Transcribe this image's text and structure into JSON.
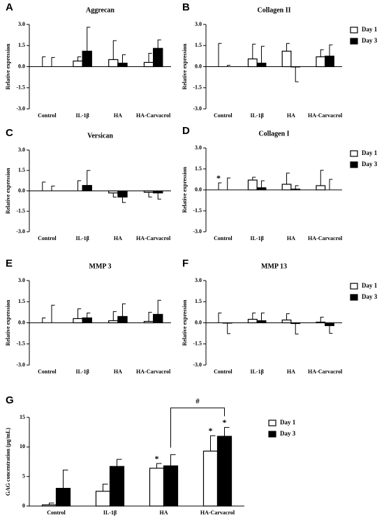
{
  "chart_data": [
    {
      "type": "bar",
      "panel": "A",
      "title": "Aggrecan",
      "ylabel": "Relative expression",
      "legend": false,
      "categories": [
        "Control",
        "IL-1β",
        "HA",
        "HA-Carvacrol"
      ],
      "series": [
        {
          "color": "#ffffff",
          "values": [
            0,
            0.4,
            0.5,
            0.3
          ],
          "errors": [
            0.7,
            0.3,
            1.35,
            0.65
          ]
        },
        {
          "color": "#000000",
          "values": [
            0,
            1.1,
            0.25,
            1.3
          ],
          "errors": [
            0.65,
            1.7,
            0.6,
            0.6
          ]
        }
      ],
      "ylim": [
        -3,
        3
      ],
      "yticks": [
        {
          "value": 3,
          "label": "3.0"
        },
        {
          "value": 1.5,
          "label": "1.5"
        },
        {
          "value": 0,
          "label": "0.0"
        },
        {
          "value": -1.5,
          "label": "-1.5"
        },
        {
          "value": -3,
          "label": "-3.0"
        }
      ]
    },
    {
      "type": "bar",
      "panel": "B",
      "title": "Collagen II",
      "ylabel": "Relative expression",
      "legend": true,
      "categories": [
        "Control",
        "IL-1β",
        "HA",
        "HA-Carvacrol"
      ],
      "series": [
        {
          "name": "Day 1",
          "color": "#ffffff",
          "values": [
            0,
            0.55,
            1.1,
            0.7
          ],
          "errors": [
            1.65,
            1.05,
            0.55,
            0.5
          ]
        },
        {
          "name": "Day 3",
          "color": "#000000",
          "values": [
            0,
            0.25,
            -0.02,
            0.75
          ],
          "errors": [
            0.1,
            1.2,
            1.05,
            0.8
          ]
        }
      ],
      "ylim": [
        -3,
        3
      ],
      "yticks": [
        {
          "value": 3,
          "label": "3.0"
        },
        {
          "value": 1.5,
          "label": "1.5"
        },
        {
          "value": 0,
          "label": "0.0"
        },
        {
          "value": -1.5,
          "label": "-1.5"
        },
        {
          "value": -3,
          "label": "-3.0"
        }
      ]
    },
    {
      "type": "bar",
      "panel": "C",
      "title": "Versican",
      "ylabel": "Relative expression",
      "legend": false,
      "categories": [
        "Control",
        "IL-1β",
        "HA",
        "HA-Carvacrol"
      ],
      "series": [
        {
          "color": "#ffffff",
          "values": [
            0,
            0,
            -0.15,
            -0.1
          ],
          "errors": [
            0.65,
            0.75,
            0.3,
            0.35
          ]
        },
        {
          "color": "#000000",
          "values": [
            0,
            0.4,
            -0.45,
            -0.15
          ],
          "errors": [
            0.35,
            1.1,
            0.4,
            0.45
          ]
        }
      ],
      "ylim": [
        -3,
        3
      ],
      "yticks": [
        {
          "value": 3,
          "label": "3.0"
        },
        {
          "value": 1.5,
          "label": "1.5"
        },
        {
          "value": 0,
          "label": "0.0"
        },
        {
          "value": -1.5,
          "label": "-1.5"
        },
        {
          "value": -3,
          "label": "-3.0"
        }
      ]
    },
    {
      "type": "bar",
      "panel": "D",
      "title": "Collagen I",
      "ylabel": "Relative expression",
      "legend": true,
      "categories": [
        "Control",
        "IL-1β",
        "HA",
        "HA-Carvacrol"
      ],
      "series": [
        {
          "name": "Day 1",
          "color": "#ffffff",
          "values": [
            0,
            0.7,
            0.4,
            0.3
          ],
          "errors": [
            0.5,
            0.2,
            0.8,
            1.1
          ],
          "marks": [
            "*",
            null,
            null,
            null
          ]
        },
        {
          "name": "Day 3",
          "color": "#000000",
          "values": [
            0,
            0.15,
            0.05,
            0
          ],
          "errors": [
            0.85,
            0.5,
            0.25,
            0.75
          ]
        }
      ],
      "ylim": [
        -3,
        3
      ],
      "yticks": [
        {
          "value": 3,
          "label": "3.0"
        },
        {
          "value": 1.5,
          "label": "1.5"
        },
        {
          "value": 0,
          "label": "0.0"
        },
        {
          "value": -1.5,
          "label": "-1.5"
        },
        {
          "value": -3,
          "label": "-3.0"
        }
      ]
    },
    {
      "type": "bar",
      "panel": "E",
      "title": "MMP 3",
      "ylabel": "Relative expression",
      "legend": false,
      "categories": [
        "Control",
        "IL-1β",
        "HA",
        "HA-Carvacrol"
      ],
      "series": [
        {
          "color": "#ffffff",
          "values": [
            0,
            0.3,
            0.15,
            0.1
          ],
          "errors": [
            0.35,
            0.7,
            0.65,
            0.65
          ]
        },
        {
          "color": "#000000",
          "values": [
            0,
            0.35,
            0.45,
            0.6
          ],
          "errors": [
            1.25,
            0.35,
            0.9,
            1.0
          ]
        }
      ],
      "ylim": [
        -3,
        3
      ],
      "yticks": [
        {
          "value": 3,
          "label": "3.0"
        },
        {
          "value": 1.5,
          "label": "1.5"
        },
        {
          "value": 0,
          "label": "0.0"
        },
        {
          "value": -1.5,
          "label": "-1.5"
        },
        {
          "value": -3,
          "label": "-3.0"
        }
      ]
    },
    {
      "type": "bar",
      "panel": "F",
      "title": "MMP 13",
      "ylabel": "Relative expression",
      "legend": true,
      "categories": [
        "Control",
        "IL-1β",
        "HA",
        "HA-Carvacrol"
      ],
      "series": [
        {
          "name": "Day 1",
          "color": "#ffffff",
          "values": [
            0,
            0.25,
            0.2,
            0.05
          ],
          "errors": [
            0.7,
            0.45,
            0.45,
            0.35
          ]
        },
        {
          "name": "Day 3",
          "color": "#000000",
          "values": [
            -0.02,
            0.15,
            -0.05,
            -0.2
          ],
          "errors": [
            0.75,
            0.55,
            0.75,
            0.55
          ]
        }
      ],
      "ylim": [
        -3,
        3
      ],
      "yticks": [
        {
          "value": 3,
          "label": "3.0"
        },
        {
          "value": 1.5,
          "label": "1.5"
        },
        {
          "value": 0,
          "label": "0.0"
        },
        {
          "value": -1.5,
          "label": "-1.5"
        },
        {
          "value": -3,
          "label": "-3.0"
        }
      ]
    },
    {
      "type": "bar",
      "panel": "G",
      "ylabel": "GAG concentration (μg/mL)",
      "legend": true,
      "categories": [
        "Control",
        "IL-1β",
        "HA",
        "HA-Carvacrol"
      ],
      "series": [
        {
          "name": "Day 1",
          "color": "#ffffff",
          "values": [
            0.2,
            2.5,
            6.4,
            9.3
          ],
          "errors": [
            0.3,
            1.2,
            0.8,
            2.6
          ],
          "marks": [
            null,
            null,
            "*",
            "*"
          ]
        },
        {
          "name": "Day 3",
          "color": "#000000",
          "values": [
            3.0,
            6.7,
            6.8,
            11.8
          ],
          "errors": [
            3.1,
            1.2,
            1.9,
            1.5
          ],
          "marks": [
            null,
            null,
            null,
            "*"
          ]
        }
      ],
      "bracket": {
        "label": "#",
        "from": 2,
        "to": 3
      },
      "ylim": [
        0,
        15
      ],
      "yticks": [
        0,
        5,
        10,
        15
      ]
    }
  ]
}
